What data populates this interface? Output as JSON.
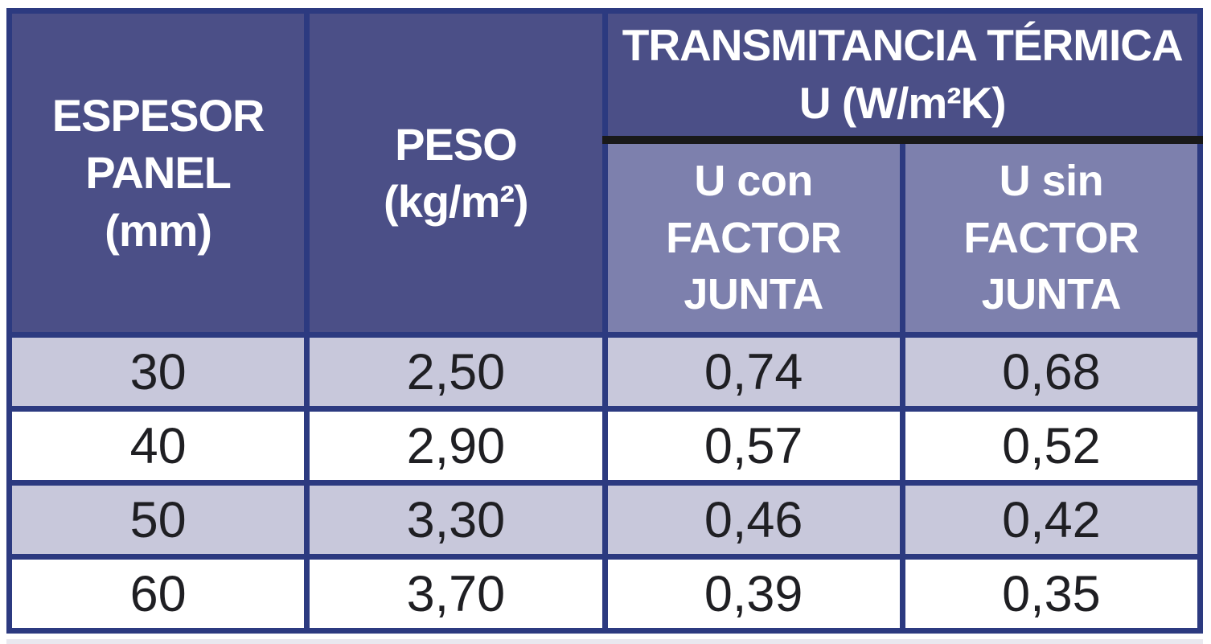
{
  "colors": {
    "header_bg": "#4b4f87",
    "subheader_bg": "#7d80ad",
    "row_alt_bg": "#c8c8db",
    "row_bg": "#ffffff",
    "border": "#2c3a80",
    "divider_black": "#191919",
    "header_text": "#ffffff",
    "data_text": "#1f1f23",
    "bottom_strip": "#e9e8ef"
  },
  "table": {
    "headers": {
      "espesor": "ESPESOR\nPANEL\n(mm)",
      "peso": "PESO\n(kg/m²)",
      "transmitancia": "TRANSMITANCIA TÉRMICA\nU (W/m²K)",
      "u_con": "U con\nFACTOR\nJUNTA",
      "u_sin": "U sin\nFACTOR\nJUNTA"
    },
    "rows": [
      {
        "espesor": "30",
        "peso": "2,50",
        "u_con": "0,74",
        "u_sin": "0,68"
      },
      {
        "espesor": "40",
        "peso": "2,90",
        "u_con": "0,57",
        "u_sin": "0,52"
      },
      {
        "espesor": "50",
        "peso": "3,30",
        "u_con": "0,46",
        "u_sin": "0,42"
      },
      {
        "espesor": "60",
        "peso": "3,70",
        "u_con": "0,39",
        "u_sin": "0,35"
      }
    ]
  },
  "chart_data": {
    "type": "table",
    "title": "TRANSMITANCIA TÉRMICA U (W/m²K)",
    "columns": [
      "ESPESOR PANEL (mm)",
      "PESO (kg/m²)",
      "U con FACTOR JUNTA",
      "U sin FACTOR JUNTA"
    ],
    "rows": [
      [
        30,
        2.5,
        0.74,
        0.68
      ],
      [
        40,
        2.9,
        0.57,
        0.52
      ],
      [
        50,
        3.3,
        0.46,
        0.42
      ],
      [
        60,
        3.7,
        0.39,
        0.35
      ]
    ]
  }
}
